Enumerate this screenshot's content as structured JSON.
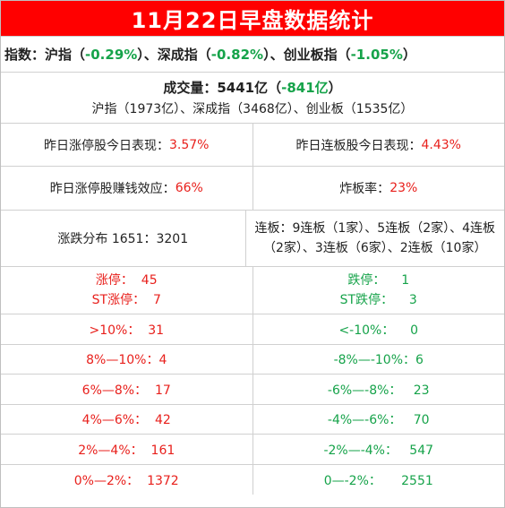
{
  "title": "11月22日早盘数据统计",
  "indices": {
    "prefix": "指数：沪指（",
    "sh": "-0.29%",
    "mid1": "）、深成指（",
    "sz": "-0.82%",
    "mid2": "）、创业板指（",
    "cy": "-1.05%",
    "suffix": "）"
  },
  "volume": {
    "label": "成交量：5441亿（",
    "change": "-841亿",
    "label_end": "）",
    "breakdown": "沪指（1973亿）、深成指（3468亿）、创业板（1535亿）"
  },
  "stats": {
    "zt_perf_label": "昨日涨停股今日表现：",
    "zt_perf_value": "3.57%",
    "lb_perf_label": "昨日连板股今日表现：",
    "lb_perf_value": "4.43%",
    "zt_money_label": "昨日涨停股赚钱效应：",
    "zt_money_value": "66%",
    "zb_rate_label": "炸板率：",
    "zb_rate_value": "23%",
    "distribution": "涨跌分布 1651：3201",
    "lianban": "连板：9连板（1家）、5连板（2家）、4连板（2家）、3连板（6家）、2连板（10家）"
  },
  "rows": [
    {
      "left": [
        "涨停：  45",
        "ST涨停：  7"
      ],
      "right": [
        "跌停：    1",
        "ST跌停：    3"
      ]
    },
    {
      "left": [
        ">10%：  31"
      ],
      "right": [
        "<-10%：    0"
      ]
    },
    {
      "left": [
        "8%—10%：4"
      ],
      "right": [
        "-8%—-10%：6"
      ]
    },
    {
      "left": [
        "6%—8%：  17"
      ],
      "right": [
        "-6%—-8%：   23"
      ]
    },
    {
      "left": [
        "4%—6%：  42"
      ],
      "right": [
        "-4%—-6%：   70"
      ]
    },
    {
      "left": [
        "2%—4%：  161"
      ],
      "right": [
        "-2%—-4%：   547"
      ]
    },
    {
      "left": [
        "0%—2%：  1372"
      ],
      "right": [
        "0—-2%：     2551"
      ]
    }
  ],
  "colors": {
    "title_bg": "#ff0000",
    "up": "#e8201c",
    "down": "#16a34a"
  }
}
